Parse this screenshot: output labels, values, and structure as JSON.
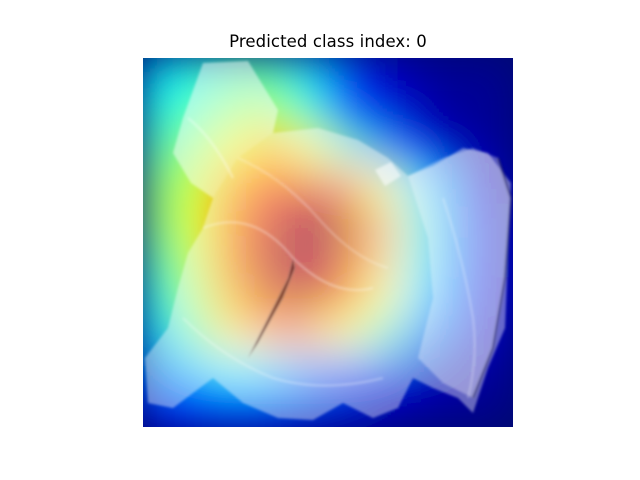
{
  "figure": {
    "title": "Predicted class index: 0"
  },
  "chart_data": {
    "type": "heatmap",
    "title": "Predicted class index: 0",
    "subtitle": "",
    "xlabel": "",
    "ylabel": "",
    "axes_visible": false,
    "grid": false,
    "legend": "none",
    "colormap": "jet",
    "overlay": "Grad-CAM style activation map blended over a photograph of a crumpled white/transparent plastic object",
    "predicted_class_index": 0,
    "activation_grid": [
      [
        0.35,
        0.4,
        0.45,
        0.45,
        0.35,
        0.18,
        0.08,
        0.04,
        0.02,
        0.02
      ],
      [
        0.4,
        0.45,
        0.52,
        0.55,
        0.42,
        0.22,
        0.1,
        0.05,
        0.02,
        0.02
      ],
      [
        0.45,
        0.52,
        0.62,
        0.7,
        0.62,
        0.45,
        0.28,
        0.12,
        0.05,
        0.03
      ],
      [
        0.5,
        0.58,
        0.72,
        0.85,
        0.9,
        0.8,
        0.6,
        0.35,
        0.12,
        0.05
      ],
      [
        0.5,
        0.6,
        0.78,
        0.92,
        1.0,
        0.95,
        0.72,
        0.42,
        0.18,
        0.08
      ],
      [
        0.45,
        0.58,
        0.78,
        0.95,
        0.98,
        0.92,
        0.7,
        0.4,
        0.18,
        0.08
      ],
      [
        0.4,
        0.55,
        0.72,
        0.92,
        0.95,
        0.85,
        0.62,
        0.35,
        0.15,
        0.08
      ],
      [
        0.35,
        0.48,
        0.65,
        0.75,
        0.72,
        0.62,
        0.45,
        0.25,
        0.1,
        0.05
      ],
      [
        0.25,
        0.32,
        0.38,
        0.35,
        0.28,
        0.22,
        0.15,
        0.08,
        0.04,
        0.03
      ],
      [
        0.12,
        0.15,
        0.18,
        0.15,
        0.1,
        0.08,
        0.05,
        0.03,
        0.02,
        0.01
      ]
    ],
    "colors": {
      "low": "#00007f",
      "mid_low": "#0080ff",
      "mid": "#7fff7f",
      "mid_high": "#ff8000",
      "high": "#7f0000",
      "object_tint": "#ffffff"
    }
  }
}
